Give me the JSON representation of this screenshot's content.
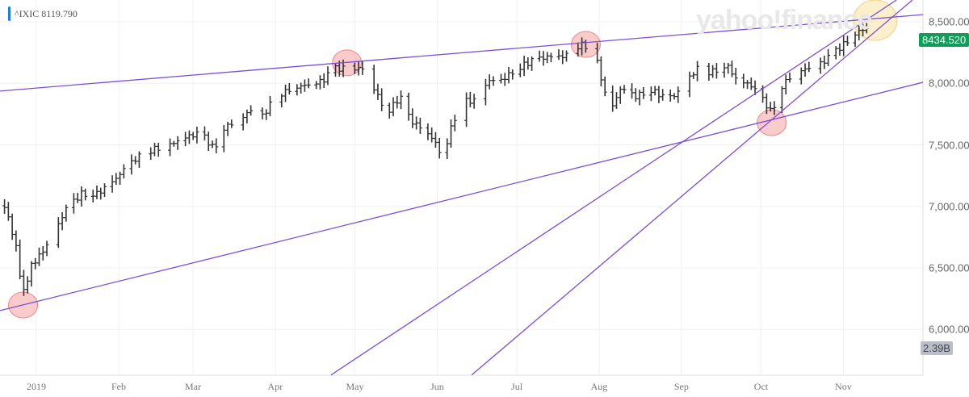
{
  "header": {
    "symbol_label": "^IXIC 8119.790"
  },
  "watermark": "yahoo!finance",
  "badges": {
    "last_price": "8434.520",
    "volume": "2.39B",
    "price_color": "#0f9d58"
  },
  "colors": {
    "trendline": "#7b4fd6",
    "bar": "#333333",
    "circle_red": "#f4a0a0",
    "circle_yellow": "#f8e3a0"
  },
  "chart_data": {
    "type": "ohlc",
    "title": "^IXIC",
    "x_unit": "days since 2019-01-01",
    "xlim": [
      -13.7,
      334
    ],
    "ylim": [
      5620,
      8680
    ],
    "grid": true,
    "y_ticks": [
      {
        "value": 8500,
        "label": "8,500.000"
      },
      {
        "value": 8000,
        "label": "8,000.000"
      },
      {
        "value": 7500,
        "label": "7,500.000"
      },
      {
        "value": 7000,
        "label": "7,000.000"
      },
      {
        "value": 6500,
        "label": "6,500.000"
      },
      {
        "value": 6000,
        "label": "6,000.000"
      }
    ],
    "x_ticks": [
      {
        "day": 0,
        "label": "2019"
      },
      {
        "day": 31,
        "label": "Feb"
      },
      {
        "day": 59,
        "label": "Mar"
      },
      {
        "day": 90,
        "label": "Apr"
      },
      {
        "day": 120,
        "label": "May"
      },
      {
        "day": 151,
        "label": "Jun"
      },
      {
        "day": 181,
        "label": "Jul"
      },
      {
        "day": 212,
        "label": "Aug"
      },
      {
        "day": 243,
        "label": "Sep"
      },
      {
        "day": 273,
        "label": "Oct"
      },
      {
        "day": 304,
        "label": "Nov"
      }
    ],
    "closes": [
      [
        -12,
        7005
      ],
      [
        -8,
        6710
      ],
      [
        -5,
        6284
      ],
      [
        -2,
        6513
      ],
      [
        5,
        6710
      ],
      [
        11,
        6972
      ],
      [
        17,
        7103
      ],
      [
        23,
        7103
      ],
      [
        29,
        7202
      ],
      [
        33,
        7300
      ],
      [
        38,
        7398
      ],
      [
        44,
        7464
      ],
      [
        50,
        7497
      ],
      [
        56,
        7562
      ],
      [
        62,
        7595
      ],
      [
        67,
        7464
      ],
      [
        70,
        7628
      ],
      [
        78,
        7726
      ],
      [
        81,
        7792
      ],
      [
        84,
        7693
      ],
      [
        90,
        7890
      ],
      [
        96,
        7956
      ],
      [
        102,
        7989
      ],
      [
        108,
        8021
      ],
      [
        112,
        8120
      ],
      [
        117,
        8120
      ],
      [
        123,
        8120
      ],
      [
        128,
        7923
      ],
      [
        132,
        7759
      ],
      [
        137,
        7890
      ],
      [
        141,
        7693
      ],
      [
        146,
        7628
      ],
      [
        150,
        7530
      ],
      [
        153,
        7398
      ],
      [
        157,
        7693
      ],
      [
        161,
        7857
      ],
      [
        166,
        7857
      ],
      [
        170,
        8021
      ],
      [
        175,
        8021
      ],
      [
        181,
        8120
      ],
      [
        187,
        8185
      ],
      [
        193,
        8218
      ],
      [
        199,
        8218
      ],
      [
        205,
        8316
      ],
      [
        210,
        8283
      ],
      [
        213,
        8021
      ],
      [
        216,
        7759
      ],
      [
        220,
        7956
      ],
      [
        226,
        7890
      ],
      [
        231,
        7956
      ],
      [
        236,
        7890
      ],
      [
        240,
        7890
      ],
      [
        245,
        8021
      ],
      [
        249,
        8120
      ],
      [
        254,
        8087
      ],
      [
        260,
        8152
      ],
      [
        264,
        8021
      ],
      [
        269,
        7989
      ],
      [
        274,
        7857
      ],
      [
        277,
        7759
      ],
      [
        280,
        7956
      ],
      [
        284,
        8054
      ],
      [
        290,
        8120
      ],
      [
        295,
        8152
      ],
      [
        299,
        8218
      ],
      [
        304,
        8316
      ],
      [
        309,
        8415
      ],
      [
        313,
        8448
      ]
    ],
    "trendlines": [
      [
        [
          -13.7,
          7937
        ],
        [
          334,
          8558
        ]
      ],
      [
        [
          -13.7,
          6153
        ],
        [
          334,
          8008
        ]
      ],
      [
        [
          111,
          5630
        ],
        [
          324,
          8677
        ]
      ],
      [
        [
          164,
          5630
        ],
        [
          330,
          8677
        ]
      ]
    ],
    "highlight_circles": [
      {
        "day": -5,
        "value": 6198,
        "color": "red"
      },
      {
        "day": 117,
        "value": 8166,
        "color": "red"
      },
      {
        "day": 207,
        "value": 8316,
        "color": "red"
      },
      {
        "day": 277,
        "value": 7680,
        "color": "red"
      },
      {
        "day": 316,
        "value": 8513,
        "color": "yellow"
      }
    ]
  }
}
